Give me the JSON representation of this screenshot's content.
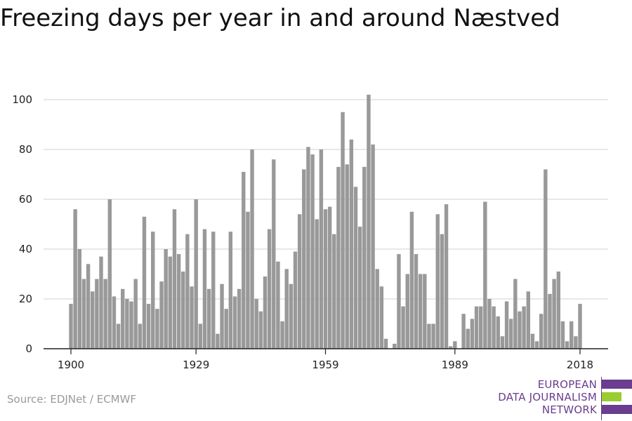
{
  "title": "Freezing days per year in and around Næstved",
  "source": "Source: EDJNet / ECMWF",
  "logo": {
    "lines": [
      "EUROPEAN",
      "DATA JOURNALISM",
      "NETWORK"
    ],
    "colors": {
      "purple": "#6a3d8f",
      "green": "#9acd32"
    }
  },
  "colors": {
    "bar": "#999999",
    "grid": "#d9d9d9",
    "axis": "#222222",
    "text": "#222222"
  },
  "chart_data": {
    "type": "bar",
    "title": "Freezing days per year in and around Næstved",
    "xlabel": "",
    "ylabel": "",
    "x_start": 1900,
    "x_end": 2018,
    "x_ticks": [
      1900,
      1929,
      1959,
      1989,
      2018
    ],
    "y_ticks": [
      0,
      20,
      40,
      60,
      80,
      100
    ],
    "ylim": [
      0,
      104
    ],
    "grid": true,
    "years": [
      1900,
      1901,
      1902,
      1903,
      1904,
      1905,
      1906,
      1907,
      1908,
      1909,
      1910,
      1911,
      1912,
      1913,
      1914,
      1915,
      1916,
      1917,
      1918,
      1919,
      1920,
      1921,
      1922,
      1923,
      1924,
      1925,
      1926,
      1927,
      1928,
      1929,
      1930,
      1931,
      1932,
      1933,
      1934,
      1935,
      1936,
      1937,
      1938,
      1939,
      1940,
      1941,
      1942,
      1943,
      1944,
      1945,
      1946,
      1947,
      1948,
      1949,
      1950,
      1951,
      1952,
      1953,
      1954,
      1955,
      1956,
      1957,
      1958,
      1959,
      1960,
      1961,
      1962,
      1963,
      1964,
      1965,
      1966,
      1967,
      1968,
      1969,
      1970,
      1971,
      1972,
      1973,
      1974,
      1975,
      1976,
      1977,
      1978,
      1979,
      1980,
      1981,
      1982,
      1983,
      1984,
      1985,
      1986,
      1987,
      1988,
      1989,
      1990,
      1991,
      1992,
      1993,
      1994,
      1995,
      1996,
      1997,
      1998,
      1999,
      2000,
      2001,
      2002,
      2003,
      2004,
      2005,
      2006,
      2007,
      2008,
      2009,
      2010,
      2011,
      2012,
      2013,
      2014,
      2015,
      2016,
      2017,
      2018
    ],
    "values": [
      18,
      56,
      40,
      28,
      34,
      23,
      28,
      37,
      28,
      60,
      21,
      10,
      24,
      20,
      19,
      28,
      10,
      53,
      18,
      47,
      16,
      27,
      40,
      37,
      56,
      38,
      31,
      46,
      25,
      60,
      10,
      48,
      24,
      47,
      6,
      26,
      16,
      47,
      21,
      24,
      71,
      55,
      80,
      20,
      15,
      29,
      48,
      76,
      35,
      11,
      32,
      26,
      39,
      54,
      72,
      81,
      78,
      52,
      80,
      56,
      57,
      46,
      73,
      95,
      74,
      84,
      65,
      49,
      73,
      102,
      82,
      32,
      25,
      4,
      0,
      2,
      38,
      17,
      30,
      55,
      38,
      30,
      30,
      10,
      10,
      54,
      46,
      58,
      1,
      3,
      0,
      14,
      8,
      12,
      17,
      17,
      59,
      20,
      17,
      13,
      5,
      19,
      12,
      28,
      15,
      17,
      23,
      6,
      3,
      14,
      72,
      22,
      28,
      31,
      11,
      3,
      11,
      5,
      18
    ]
  }
}
